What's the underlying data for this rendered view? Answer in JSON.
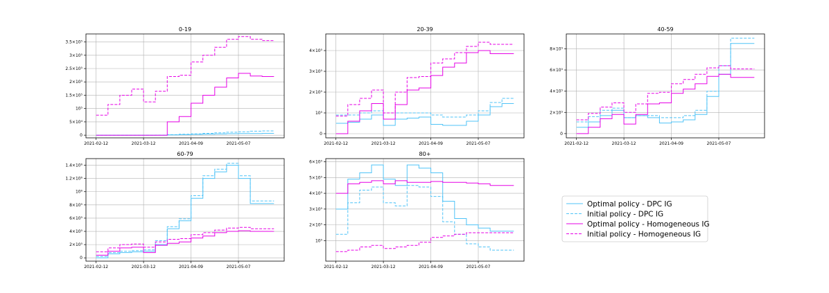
{
  "colors": {
    "dpc": "#4fc3f7",
    "homogeneous": "#e600e6"
  },
  "legend": {
    "placement": "center-right",
    "entries": [
      {
        "label": "Optimal policy - DPC IG",
        "series": "opt_dpc",
        "color": "#4fc3f7",
        "dash": "solid"
      },
      {
        "label": "Initial policy - DPC IG",
        "series": "init_dpc",
        "color": "#4fc3f7",
        "dash": "dashed"
      },
      {
        "label": "Optimal policy - Homogeneous IG",
        "series": "opt_hom",
        "color": "#e600e6",
        "dash": "solid"
      },
      {
        "label": "Initial policy - Homogeneous IG",
        "series": "init_hom",
        "color": "#e600e6",
        "dash": "dashed"
      }
    ]
  },
  "chart_data": [
    {
      "type": "line",
      "title": "0-19",
      "x": [
        "2021-02-12",
        "2021-02-19",
        "2021-02-26",
        "2021-03-05",
        "2021-03-12",
        "2021-03-19",
        "2021-03-26",
        "2021-04-02",
        "2021-04-09",
        "2021-04-16",
        "2021-04-23",
        "2021-04-30",
        "2021-05-07",
        "2021-05-14",
        "2021-05-21"
      ],
      "xticks": [
        "2021-02-12",
        "2021-03-12",
        "2021-04-09",
        "2021-05-07"
      ],
      "ylim": [
        -10000,
        380000
      ],
      "yticks": [
        0,
        50000,
        100000,
        150000,
        200000,
        250000,
        300000,
        350000
      ],
      "ytick_labels": [
        "0",
        "5×10⁴",
        "10⁵",
        "1.5×10⁵",
        "2×10⁵",
        "2.5×10⁵",
        "3×10⁵",
        "3.5×10⁵"
      ],
      "grid": true,
      "series": [
        {
          "key": "opt_dpc",
          "values": [
            0,
            0,
            0,
            0,
            0,
            0,
            1000,
            2000,
            3000,
            3500,
            4500,
            5500,
            6000,
            6500,
            7000
          ]
        },
        {
          "key": "init_dpc",
          "values": [
            0,
            0,
            0,
            0,
            0,
            500,
            2000,
            3500,
            5000,
            7000,
            9000,
            11000,
            13000,
            15000,
            16000
          ]
        },
        {
          "key": "opt_hom",
          "values": [
            0,
            0,
            0,
            0,
            0,
            0,
            50000,
            70000,
            120000,
            150000,
            180000,
            215000,
            232000,
            222000,
            220000
          ]
        },
        {
          "key": "init_hom",
          "values": [
            75000,
            115000,
            150000,
            173000,
            125000,
            165000,
            220000,
            225000,
            275000,
            300000,
            330000,
            360000,
            370000,
            360000,
            355000
          ]
        }
      ]
    },
    {
      "type": "line",
      "title": "20-39",
      "x": [
        "2021-02-12",
        "2021-02-19",
        "2021-02-26",
        "2021-03-05",
        "2021-03-12",
        "2021-03-19",
        "2021-03-26",
        "2021-04-02",
        "2021-04-09",
        "2021-04-16",
        "2021-04-23",
        "2021-04-30",
        "2021-05-07",
        "2021-05-14",
        "2021-05-21"
      ],
      "xticks": [
        "2021-02-12",
        "2021-03-12",
        "2021-04-09",
        "2021-05-07"
      ],
      "ylim": [
        -20000,
        480000
      ],
      "yticks": [
        0,
        100000,
        200000,
        300000,
        400000
      ],
      "ytick_labels": [
        "0",
        "10⁵",
        "2×10⁵",
        "3×10⁵",
        "4×10⁵"
      ],
      "grid": true,
      "series": [
        {
          "key": "opt_dpc",
          "values": [
            50000,
            55000,
            70000,
            90000,
            40000,
            70000,
            75000,
            80000,
            45000,
            40000,
            40000,
            60000,
            90000,
            130000,
            145000
          ]
        },
        {
          "key": "init_dpc",
          "values": [
            90000,
            90000,
            100000,
            110000,
            70000,
            100000,
            100000,
            100000,
            90000,
            80000,
            80000,
            90000,
            110000,
            150000,
            170000
          ]
        },
        {
          "key": "opt_hom",
          "values": [
            0,
            60000,
            110000,
            145000,
            70000,
            140000,
            210000,
            220000,
            280000,
            320000,
            340000,
            390000,
            400000,
            385000,
            385000
          ]
        },
        {
          "key": "init_hom",
          "values": [
            85000,
            140000,
            170000,
            210000,
            100000,
            200000,
            270000,
            275000,
            340000,
            360000,
            390000,
            420000,
            440000,
            430000,
            430000
          ]
        }
      ]
    },
    {
      "type": "line",
      "title": "40-59",
      "x": [
        "2021-02-12",
        "2021-02-19",
        "2021-02-26",
        "2021-03-05",
        "2021-03-12",
        "2021-03-19",
        "2021-03-26",
        "2021-04-02",
        "2021-04-09",
        "2021-04-16",
        "2021-04-23",
        "2021-04-30",
        "2021-05-07",
        "2021-05-14",
        "2021-05-21"
      ],
      "xticks": [
        "2021-02-12",
        "2021-03-12",
        "2021-04-09",
        "2021-05-07"
      ],
      "ylim": [
        -40000,
        940000
      ],
      "yticks": [
        0,
        200000,
        400000,
        600000,
        800000
      ],
      "ytick_labels": [
        "0",
        "2×10⁵",
        "4×10⁵",
        "6×10⁵",
        "8×10⁵"
      ],
      "grid": true,
      "series": [
        {
          "key": "opt_dpc",
          "values": [
            60000,
            110000,
            170000,
            220000,
            150000,
            170000,
            150000,
            100000,
            110000,
            130000,
            180000,
            350000,
            560000,
            850000,
            850000
          ]
        },
        {
          "key": "init_dpc",
          "values": [
            110000,
            160000,
            220000,
            240000,
            150000,
            170000,
            170000,
            150000,
            150000,
            170000,
            220000,
            400000,
            640000,
            900000,
            900000
          ]
        },
        {
          "key": "opt_hom",
          "values": [
            0,
            60000,
            140000,
            180000,
            90000,
            180000,
            280000,
            290000,
            380000,
            420000,
            470000,
            540000,
            560000,
            530000,
            530000
          ]
        },
        {
          "key": "init_hom",
          "values": [
            130000,
            190000,
            250000,
            290000,
            200000,
            280000,
            380000,
            390000,
            470000,
            510000,
            560000,
            620000,
            640000,
            610000,
            610000
          ]
        }
      ]
    },
    {
      "type": "line",
      "title": "60-79",
      "x": [
        "2021-02-12",
        "2021-02-19",
        "2021-02-26",
        "2021-03-05",
        "2021-03-12",
        "2021-03-19",
        "2021-03-26",
        "2021-04-02",
        "2021-04-09",
        "2021-04-16",
        "2021-04-23",
        "2021-04-30",
        "2021-05-07",
        "2021-05-14",
        "2021-05-21"
      ],
      "xticks": [
        "2021-02-12",
        "2021-03-12",
        "2021-04-09",
        "2021-05-07"
      ],
      "ylim": [
        -50000,
        1500000
      ],
      "yticks": [
        0,
        200000,
        400000,
        600000,
        800000,
        1000000,
        1200000,
        1400000
      ],
      "ytick_labels": [
        "0",
        "2×10⁵",
        "4×10⁵",
        "6×10⁵",
        "8×10⁵",
        "10⁶",
        "1.2×10⁶",
        "1.4×10⁶"
      ],
      "grid": true,
      "series": [
        {
          "key": "opt_dpc",
          "values": [
            0,
            60000,
            80000,
            90000,
            100000,
            200000,
            440000,
            560000,
            900000,
            1200000,
            1300000,
            1400000,
            1200000,
            820000,
            820000
          ]
        },
        {
          "key": "init_dpc",
          "values": [
            20000,
            80000,
            100000,
            110000,
            120000,
            260000,
            470000,
            590000,
            940000,
            1240000,
            1340000,
            1430000,
            1240000,
            860000,
            860000
          ]
        },
        {
          "key": "opt_hom",
          "values": [
            40000,
            100000,
            150000,
            160000,
            80000,
            190000,
            220000,
            240000,
            300000,
            330000,
            380000,
            400000,
            410000,
            400000,
            400000
          ]
        },
        {
          "key": "init_hom",
          "values": [
            90000,
            150000,
            200000,
            210000,
            160000,
            240000,
            280000,
            290000,
            350000,
            380000,
            420000,
            450000,
            460000,
            440000,
            440000
          ]
        }
      ]
    },
    {
      "type": "line",
      "title": "80+",
      "x": [
        "2021-02-12",
        "2021-02-19",
        "2021-02-26",
        "2021-03-05",
        "2021-03-12",
        "2021-03-19",
        "2021-03-26",
        "2021-04-02",
        "2021-04-09",
        "2021-04-16",
        "2021-04-23",
        "2021-04-30",
        "2021-05-07",
        "2021-05-14",
        "2021-05-21"
      ],
      "xticks": [
        "2021-02-12",
        "2021-03-12",
        "2021-04-09",
        "2021-05-07"
      ],
      "ylim": [
        -30000,
        620000
      ],
      "yticks": [
        100000,
        200000,
        300000,
        400000,
        500000,
        600000
      ],
      "ytick_labels": [
        "10⁵",
        "2×10⁵",
        "3×10⁵",
        "4×10⁵",
        "5×10⁵",
        "6×10⁵"
      ],
      "grid": true,
      "series": [
        {
          "key": "opt_dpc",
          "values": [
            300000,
            490000,
            530000,
            580000,
            490000,
            450000,
            580000,
            560000,
            530000,
            350000,
            240000,
            200000,
            180000,
            160000,
            160000
          ]
        },
        {
          "key": "init_dpc",
          "values": [
            140000,
            340000,
            420000,
            440000,
            340000,
            320000,
            450000,
            440000,
            380000,
            220000,
            140000,
            80000,
            60000,
            40000,
            40000
          ]
        },
        {
          "key": "opt_hom",
          "values": [
            400000,
            460000,
            470000,
            480000,
            460000,
            480000,
            470000,
            470000,
            475000,
            470000,
            470000,
            465000,
            460000,
            450000,
            450000
          ]
        },
        {
          "key": "init_hom",
          "values": [
            30000,
            40000,
            60000,
            70000,
            50000,
            60000,
            70000,
            90000,
            120000,
            130000,
            140000,
            150000,
            150000,
            150000,
            150000
          ]
        }
      ]
    }
  ]
}
